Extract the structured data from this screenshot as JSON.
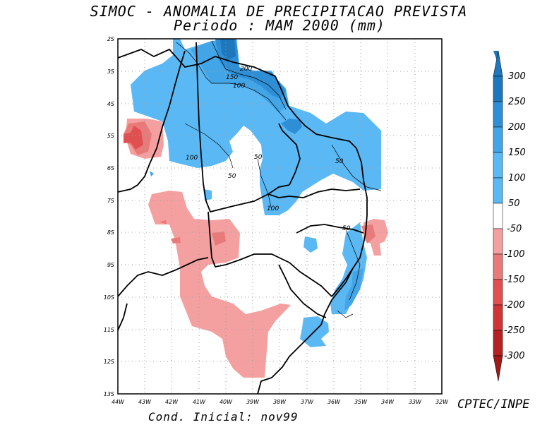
{
  "title": {
    "line1": "SIMOC -  ANOMALIA DE PRECIPITACAO PREVISTA",
    "line2": "Periodo : MAM 2000 (mm)"
  },
  "footer": {
    "initial_condition": "Cond. Inicial: nov99",
    "credit": "CPTEC/INPE"
  },
  "map": {
    "lon_labels": [
      "44W",
      "43W",
      "42W",
      "41W",
      "40W",
      "39W",
      "38W",
      "37W",
      "36W",
      "35W",
      "34W",
      "33W",
      "32W"
    ],
    "lat_labels": [
      "2S",
      "3S",
      "4S",
      "5S",
      "6S",
      "7S",
      "8S",
      "9S",
      "10S",
      "11S",
      "12S",
      "13S"
    ],
    "contour_labels": [
      "200",
      "150",
      "100",
      "100",
      "50",
      "50",
      "50",
      "100",
      "50"
    ]
  },
  "colorbar": {
    "levels": [
      "300",
      "250",
      "200",
      "150",
      "100",
      "50",
      "-50",
      "-100",
      "-150",
      "-200",
      "-250",
      "-300"
    ],
    "colors": [
      "#1e78bd",
      "#2f8fd6",
      "#42a5e8",
      "#5ab8f5",
      "#ffffff",
      "#f5a0a0",
      "#e97a7a",
      "#e05050",
      "#cf3535",
      "#b52020"
    ]
  },
  "chart_data": {
    "type": "heatmap",
    "title": "SIMOC - ANOMALIA DE PRECIPITACAO PREVISTA, Periodo : MAM 2000 (mm)",
    "x_range": [
      -44,
      -32
    ],
    "y_range": [
      -13,
      -2
    ],
    "units": "mm",
    "contour_levels": [
      -300,
      -250,
      -200,
      -150,
      -100,
      -50,
      50,
      100,
      150,
      200,
      250,
      300
    ]
  }
}
